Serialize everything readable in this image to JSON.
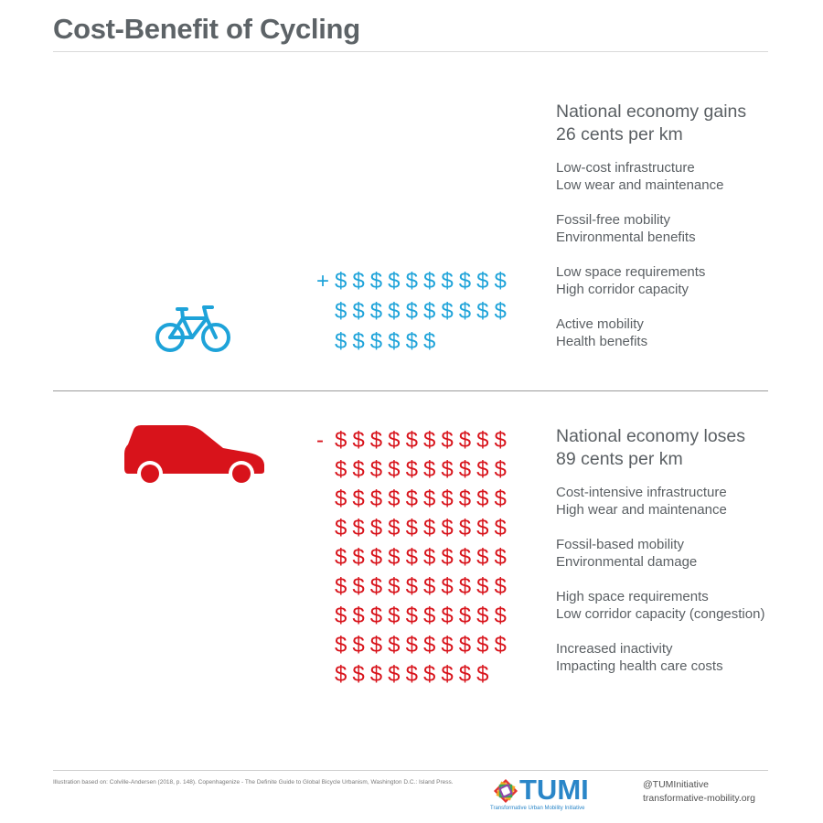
{
  "title": "Cost-Benefit of Cycling",
  "bike": {
    "sign": "+",
    "dollar_rows": [
      10,
      10,
      6
    ],
    "color": "#1ea3d9",
    "headline": [
      "National economy gains",
      "26 cents per km"
    ],
    "items": [
      [
        "Low-cost infrastructure",
        "Low wear and maintenance"
      ],
      [
        "Fossil-free mobility",
        "Environmental benefits"
      ],
      [
        "Low space requirements",
        "High corridor capacity"
      ],
      [
        "Active mobility",
        "Health benefits"
      ]
    ]
  },
  "car": {
    "sign": "-",
    "dollar_rows": [
      10,
      10,
      10,
      10,
      10,
      10,
      10,
      10,
      9
    ],
    "color": "#d8131b",
    "headline": [
      "National economy loses",
      "89 cents per km"
    ],
    "items": [
      [
        "Cost-intensive infrastructure",
        "High wear and maintenance"
      ],
      [
        "Fossil-based mobility",
        "Environmental damage"
      ],
      [
        "High space requirements",
        "Low corridor capacity (congestion)"
      ],
      [
        "Increased inactivity",
        "Impacting health care costs"
      ]
    ]
  },
  "footer": {
    "source": "Illustration based on: Colville-Andersen (2018, p. 148). Copenhagenize - The Definite Guide to Global Bicycle Urbanism, Washington D.C.: Island Press.",
    "logo_word": "TUMI",
    "logo_sub": "Transformative Urban Mobility Initiative",
    "handle": "@TUMInitiative",
    "website": "transformative-mobility.org"
  }
}
